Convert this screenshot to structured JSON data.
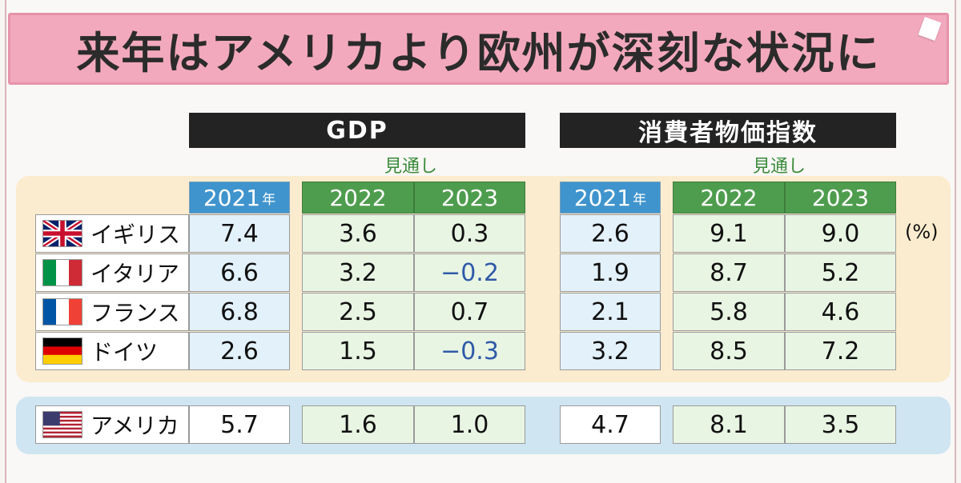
{
  "title": "来年はアメリカより欧州が深刻な状況に",
  "gdp_header": "GDP",
  "cpi_header": "消費者物価指数",
  "forecast_label": "見通し",
  "years": {
    "base": "2021",
    "base_suffix": "年",
    "y1": "2022",
    "y2": "2023"
  },
  "unit": "(%)",
  "rows": [
    {
      "country": "イギリス",
      "gdp": [
        "7.4",
        "3.6",
        "0.3"
      ],
      "cpi": [
        "2.6",
        "9.1",
        "9.0"
      ]
    },
    {
      "country": "イタリア",
      "gdp": [
        "6.6",
        "3.2",
        "−0.2"
      ],
      "cpi": [
        "1.9",
        "8.7",
        "5.2"
      ]
    },
    {
      "country": "フランス",
      "gdp": [
        "6.8",
        "2.5",
        "0.7"
      ],
      "cpi": [
        "2.1",
        "5.8",
        "4.6"
      ]
    },
    {
      "country": "ドイツ",
      "gdp": [
        "2.6",
        "1.5",
        "−0.3"
      ],
      "cpi": [
        "3.2",
        "8.5",
        "7.2"
      ]
    }
  ],
  "usa": {
    "country": "アメリカ",
    "gdp": [
      "5.7",
      "1.6",
      "1.0"
    ],
    "cpi": [
      "4.7",
      "8.1",
      "3.5"
    ]
  },
  "colors": {
    "title_bg": "#f3a9bd",
    "year_blue": "#3f94cd",
    "year_green": "#4e9d4e",
    "negative": "#2f5aa8"
  }
}
